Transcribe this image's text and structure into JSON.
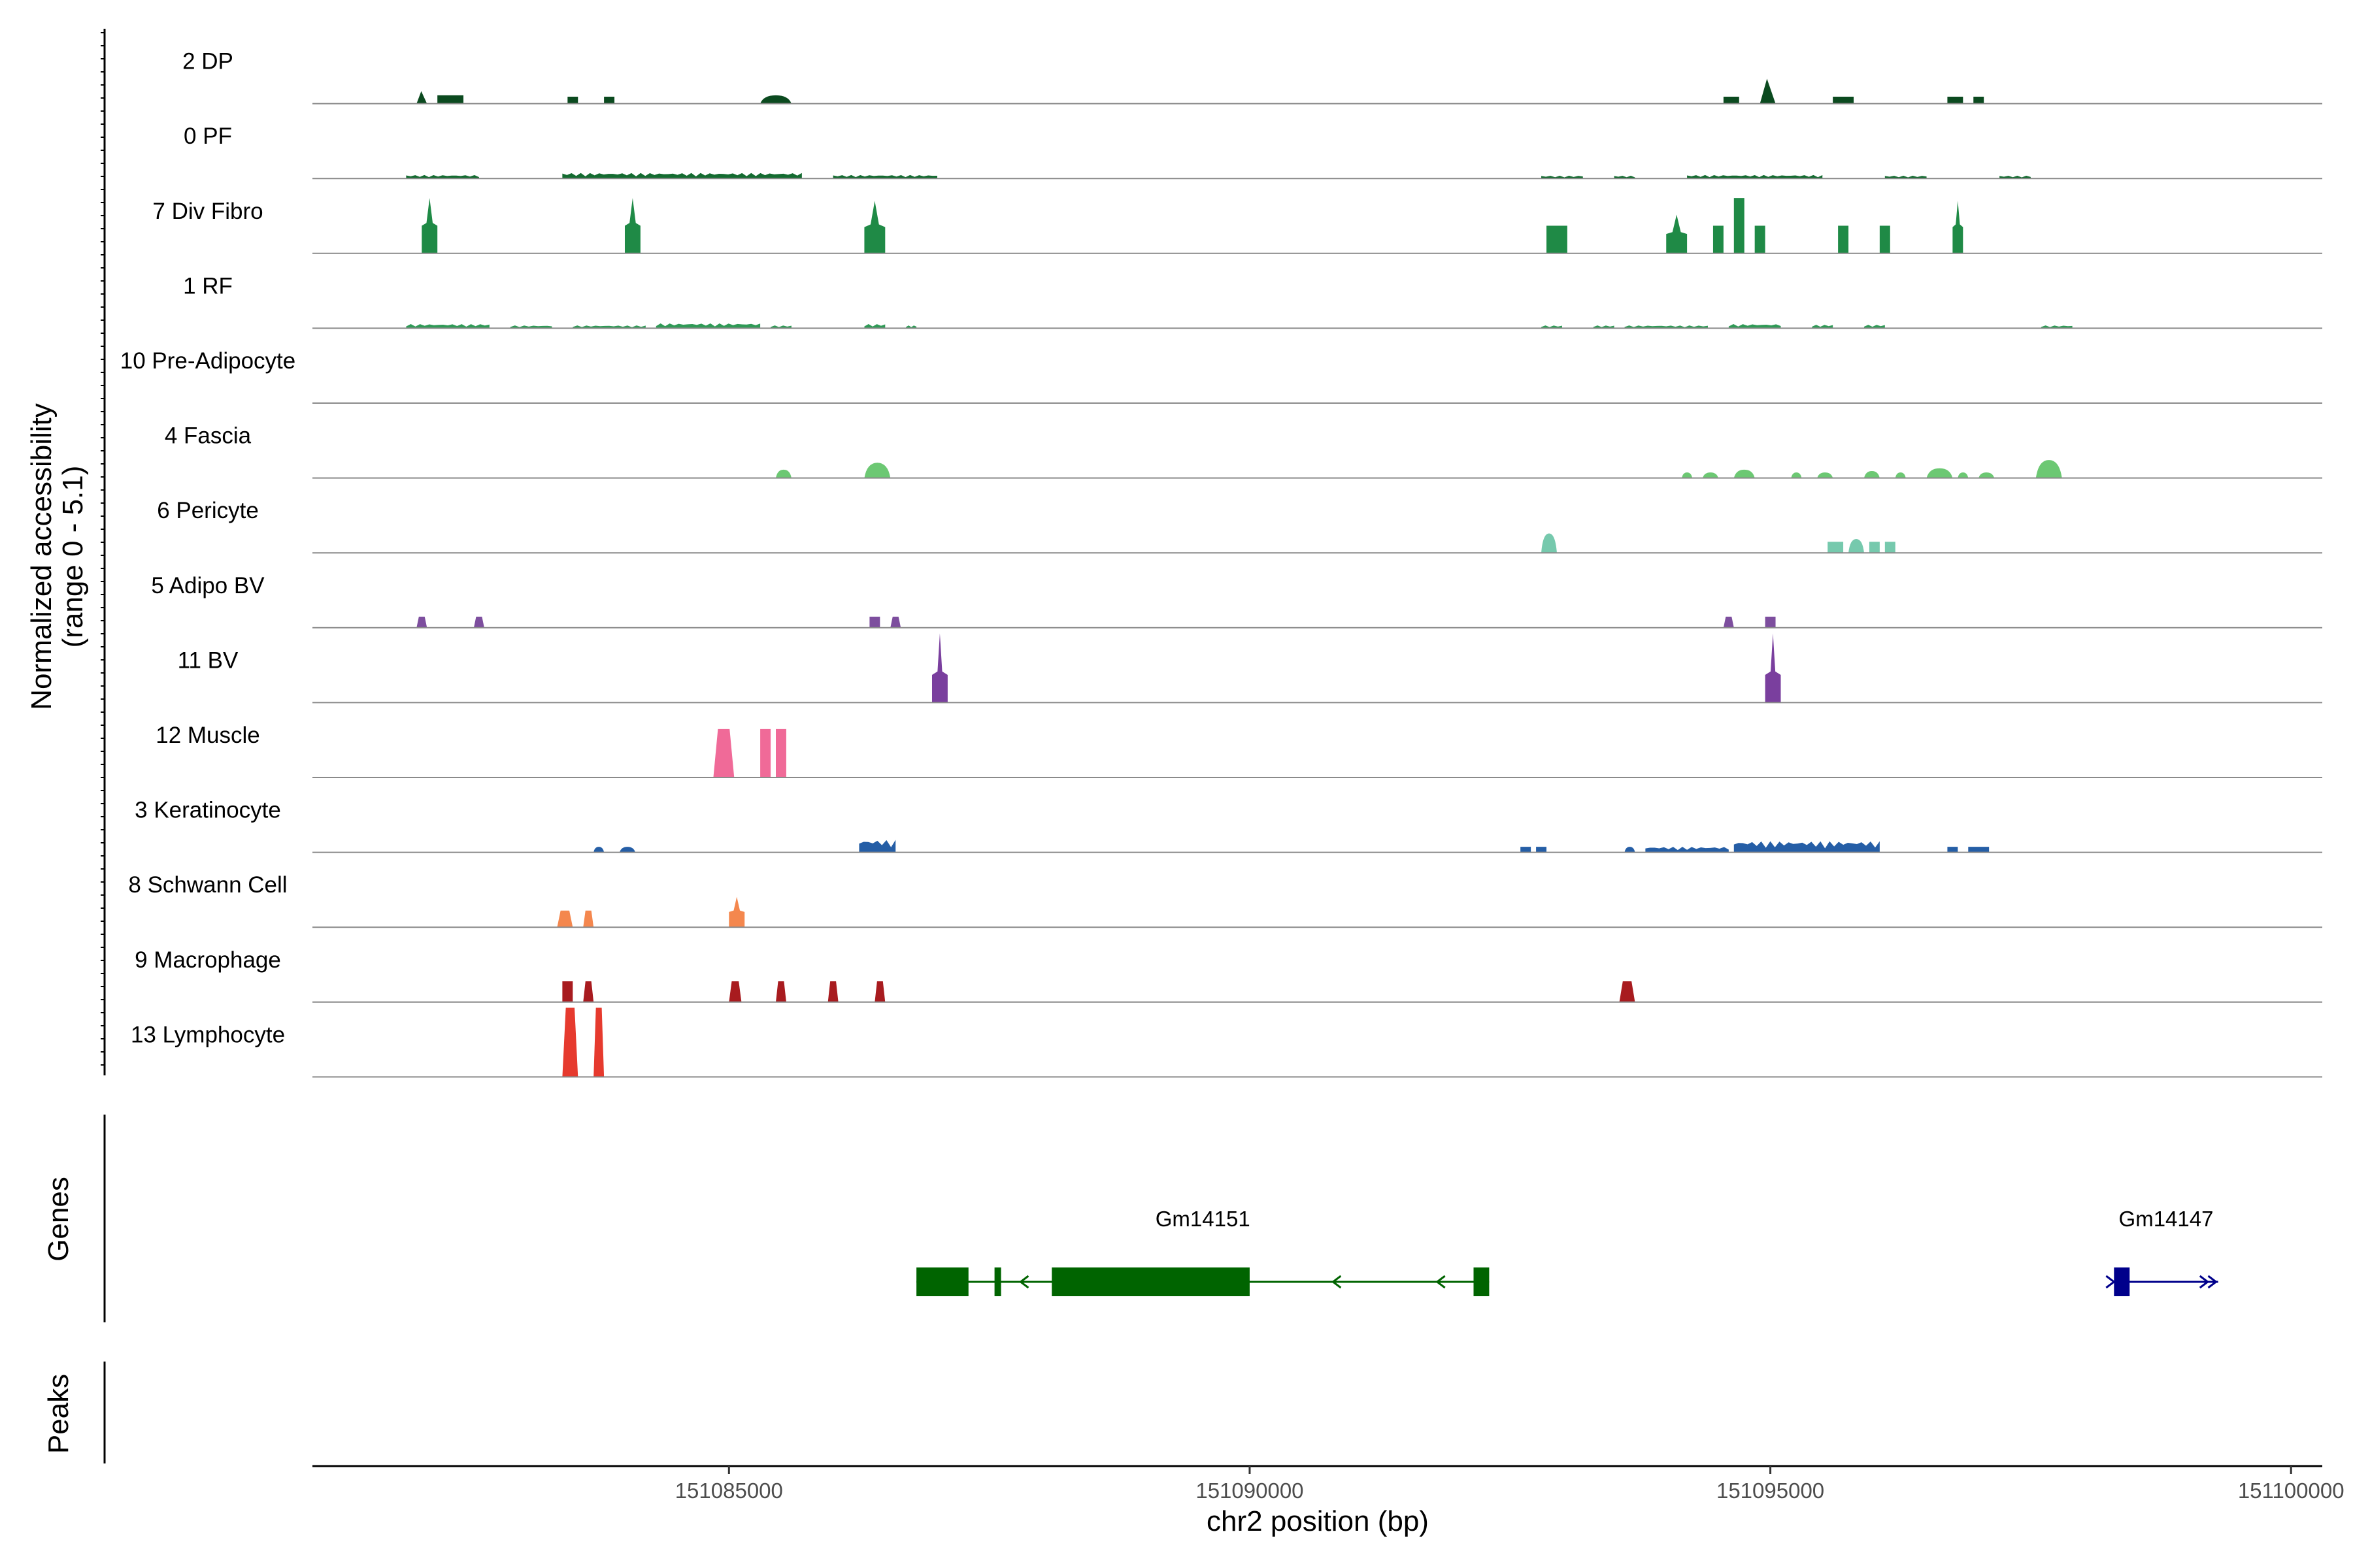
{
  "chart_data": {
    "type": "area",
    "coverage": {
      "ylabel": "Normalized accessibility",
      "ylabel_range": "(range 0 - 5.1)",
      "tracks": [
        {
          "name": "2 DP",
          "color": "#0b4a1f",
          "peaks": [
            [
              151082000,
              151082100,
              0.9,
              "tri"
            ],
            [
              151082200,
              151082450,
              0.6,
              "box"
            ],
            [
              151083450,
              151083550,
              0.5,
              "box"
            ],
            [
              151083800,
              151083900,
              0.5,
              "box"
            ],
            [
              151085300,
              151085600,
              0.6,
              "bump"
            ],
            [
              151094550,
              151094700,
              0.5,
              "box"
            ],
            [
              151094900,
              151095050,
              1.8,
              "tri"
            ],
            [
              151095600,
              151095800,
              0.5,
              "box"
            ],
            [
              151096700,
              151096850,
              0.5,
              "box"
            ],
            [
              151096950,
              151097050,
              0.5,
              "box"
            ]
          ]
        },
        {
          "name": "0 PF",
          "color": "#136b30",
          "peaks": [
            [
              151081900,
              151082600,
              0.25,
              "noise"
            ],
            [
              151083400,
              151085700,
              0.4,
              "noise"
            ],
            [
              151086000,
              151087000,
              0.25,
              "noise"
            ],
            [
              151092800,
              151093200,
              0.2,
              "noise"
            ],
            [
              151093500,
              151093700,
              0.2,
              "noise"
            ],
            [
              151094200,
              151095500,
              0.25,
              "noise"
            ],
            [
              151096100,
              151096500,
              0.2,
              "noise"
            ],
            [
              151097200,
              151097500,
              0.2,
              "noise"
            ]
          ]
        },
        {
          "name": "7 Div Fibro",
          "color": "#1f8a46",
          "peaks": [
            [
              151082050,
              151082200,
              4.0,
              "peak"
            ],
            [
              151084000,
              151084150,
              4.0,
              "peak"
            ],
            [
              151086300,
              151086500,
              3.8,
              "peak"
            ],
            [
              151092850,
              151093050,
              2.0,
              "box"
            ],
            [
              151094000,
              151094200,
              2.8,
              "peak"
            ],
            [
              151094450,
              151094550,
              2.0,
              "box"
            ],
            [
              151094650,
              151094750,
              4.0,
              "box"
            ],
            [
              151094850,
              151094950,
              2.0,
              "box"
            ],
            [
              151095650,
              151095750,
              2.0,
              "box"
            ],
            [
              151096050,
              151096150,
              2.0,
              "box"
            ],
            [
              151096750,
              151096850,
              3.8,
              "peak"
            ]
          ]
        },
        {
          "name": "1 RF",
          "color": "#2f9a56",
          "peaks": [
            [
              151081900,
              151082700,
              0.3,
              "noise"
            ],
            [
              151082900,
              151083300,
              0.2,
              "noise"
            ],
            [
              151083500,
              151084200,
              0.2,
              "noise"
            ],
            [
              151084300,
              151085300,
              0.35,
              "noise"
            ],
            [
              151085400,
              151085600,
              0.2,
              "noise"
            ],
            [
              151086300,
              151086500,
              0.3,
              "noise"
            ],
            [
              151086700,
              151086800,
              0.2,
              "noise"
            ],
            [
              151092800,
              151093000,
              0.2,
              "noise"
            ],
            [
              151093300,
              151093500,
              0.2,
              "noise"
            ],
            [
              151093600,
              151094400,
              0.2,
              "noise"
            ],
            [
              151094600,
              151095100,
              0.3,
              "noise"
            ],
            [
              151095400,
              151095600,
              0.25,
              "noise"
            ],
            [
              151095900,
              151096100,
              0.25,
              "noise"
            ],
            [
              151097600,
              151097900,
              0.2,
              "noise"
            ]
          ]
        },
        {
          "name": "10 Pre-Adipocyte",
          "color": "#3aa561",
          "peaks": []
        },
        {
          "name": "4 Fascia",
          "color": "#6cc873",
          "peaks": [
            [
              151085450,
              151085600,
              0.6,
              "bump"
            ],
            [
              151086300,
              151086550,
              1.1,
              "bump"
            ],
            [
              151094150,
              151094250,
              0.4,
              "bump"
            ],
            [
              151094350,
              151094500,
              0.4,
              "bump"
            ],
            [
              151094650,
              151094850,
              0.6,
              "bump"
            ],
            [
              151095200,
              151095300,
              0.4,
              "bump"
            ],
            [
              151095450,
              151095600,
              0.4,
              "bump"
            ],
            [
              151095900,
              151096050,
              0.5,
              "bump"
            ],
            [
              151096200,
              151096300,
              0.4,
              "bump"
            ],
            [
              151096500,
              151096750,
              0.7,
              "bump"
            ],
            [
              151096800,
              151096900,
              0.4,
              "bump"
            ],
            [
              151097000,
              151097150,
              0.4,
              "bump"
            ],
            [
              151097550,
              151097800,
              1.3,
              "bump"
            ]
          ]
        },
        {
          "name": "6 Pericyte",
          "color": "#76c9ad",
          "peaks": [
            [
              151092800,
              151092950,
              1.4,
              "hill"
            ],
            [
              151095550,
              151095700,
              0.8,
              "box"
            ],
            [
              151095750,
              151095900,
              1.0,
              "hill"
            ],
            [
              151095950,
              151096050,
              0.8,
              "box"
            ],
            [
              151096100,
              151096200,
              0.8,
              "box"
            ]
          ]
        },
        {
          "name": "5 Adipo BV",
          "color": "#7d4e9e",
          "peaks": [
            [
              151082000,
              151082100,
              0.8,
              "trap"
            ],
            [
              151082550,
              151082650,
              0.8,
              "trap"
            ],
            [
              151086350,
              151086450,
              0.8,
              "box"
            ],
            [
              151086550,
              151086650,
              0.8,
              "trap"
            ],
            [
              151094550,
              151094650,
              0.8,
              "trap"
            ],
            [
              151094950,
              151095050,
              0.8,
              "box"
            ]
          ]
        },
        {
          "name": "11 BV",
          "color": "#7a3f9e",
          "peaks": [
            [
              151086950,
              151087100,
              5.0,
              "spire"
            ],
            [
              151094950,
              151095100,
              5.0,
              "spire"
            ]
          ]
        },
        {
          "name": "12 Muscle",
          "color": "#f06a98",
          "peaks": [
            [
              151084850,
              151085050,
              3.5,
              "trap"
            ],
            [
              151085300,
              151085400,
              3.5,
              "box"
            ],
            [
              151085450,
              151085550,
              3.5,
              "box"
            ]
          ]
        },
        {
          "name": "3 Keratinocyte",
          "color": "#255ea6",
          "peaks": [
            [
              151083700,
              151083800,
              0.4,
              "bump"
            ],
            [
              151083950,
              151084100,
              0.4,
              "bump"
            ],
            [
              151086250,
              151086600,
              0.9,
              "noise"
            ],
            [
              151092600,
              151092700,
              0.4,
              "box"
            ],
            [
              151092750,
              151092850,
              0.4,
              "box"
            ],
            [
              151093600,
              151093700,
              0.4,
              "bump"
            ],
            [
              151093800,
              151094600,
              0.4,
              "noise"
            ],
            [
              151094650,
              151096050,
              0.8,
              "noise"
            ],
            [
              151096700,
              151096800,
              0.4,
              "box"
            ],
            [
              151096900,
              151097100,
              0.4,
              "box"
            ]
          ]
        },
        {
          "name": "8 Schwann Cell",
          "color": "#f4874e",
          "peaks": [
            [
              151083350,
              151083500,
              1.2,
              "trap"
            ],
            [
              151083600,
              151083700,
              1.2,
              "trap"
            ],
            [
              151085000,
              151085150,
              2.2,
              "peak"
            ]
          ]
        },
        {
          "name": "9 Macrophage",
          "color": "#a81b1f",
          "peaks": [
            [
              151083400,
              151083500,
              1.5,
              "box"
            ],
            [
              151083600,
              151083700,
              1.5,
              "trap"
            ],
            [
              151085000,
              151085120,
              1.5,
              "trap"
            ],
            [
              151085450,
              151085550,
              1.5,
              "trap"
            ],
            [
              151085950,
              151086050,
              1.5,
              "trap"
            ],
            [
              151086400,
              151086500,
              1.5,
              "trap"
            ],
            [
              151093550,
              151093700,
              1.5,
              "trap"
            ]
          ]
        },
        {
          "name": "13 Lymphocyte",
          "color": "#e63a2e",
          "peaks": [
            [
              151083400,
              151083550,
              5.0,
              "trap"
            ],
            [
              151083700,
              151083800,
              5.0,
              "trap"
            ]
          ]
        }
      ]
    },
    "genes": {
      "label": "Genes",
      "items": [
        {
          "name": "Gm14151",
          "color": "#006400",
          "strand": "-",
          "start": 151086800,
          "end": 151092300,
          "exons": [
            [
              151086800,
              151087300
            ],
            [
              151087550,
              151087600
            ],
            [
              151088100,
              151090000
            ],
            [
              151092150,
              151092300
            ]
          ],
          "arrows": [
            151087800,
            151090800,
            151091800
          ]
        },
        {
          "name": "Gm14147",
          "color": "#00008b",
          "strand": "+",
          "start": 151098300,
          "end": 151099300,
          "exons": [
            [
              151098300,
              151098450
            ]
          ],
          "arrows": [
            151098300,
            151099200,
            151099280
          ]
        }
      ]
    },
    "peaks_track": {
      "label": "Peaks",
      "regions": []
    },
    "x_axis": {
      "label": "chr2 position (bp)",
      "min": 151081000,
      "max": 151100300,
      "ticks": [
        151085000,
        151090000,
        151095000,
        151100000
      ],
      "tick_labels": [
        "151085000",
        "151090000",
        "151095000",
        "151100000"
      ]
    },
    "y_max": 5.1
  }
}
